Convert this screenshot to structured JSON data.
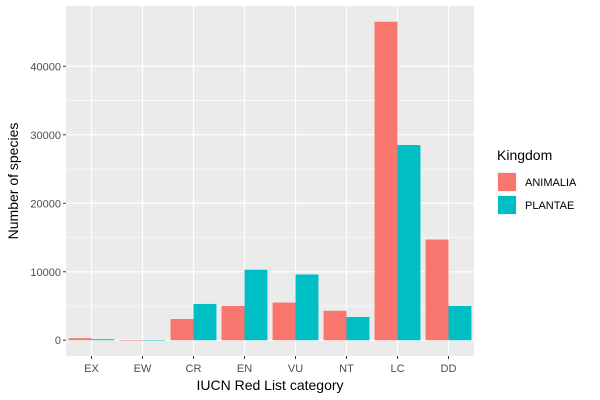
{
  "chart_data": {
    "type": "bar",
    "categories": [
      "EX",
      "EW",
      "CR",
      "EN",
      "VU",
      "NT",
      "LC",
      "DD"
    ],
    "series": [
      {
        "name": "ANIMALIA",
        "color": "#F8766D",
        "values": [
          300,
          30,
          3100,
          5000,
          5500,
          4300,
          46500,
          14700
        ]
      },
      {
        "name": "PLANTAE",
        "color": "#00BFC4",
        "values": [
          150,
          40,
          5300,
          10300,
          9600,
          3400,
          28500,
          5000
        ]
      }
    ],
    "yticks": [
      0,
      10000,
      20000,
      30000,
      40000
    ],
    "ylim": [
      -2300,
      48800
    ],
    "xlabel": "IUCN Red List category",
    "ylabel": "Number of species",
    "legend_title": "Kingdom",
    "legend_position": "right",
    "grid": true,
    "panel_color": "#EBEBEB"
  }
}
